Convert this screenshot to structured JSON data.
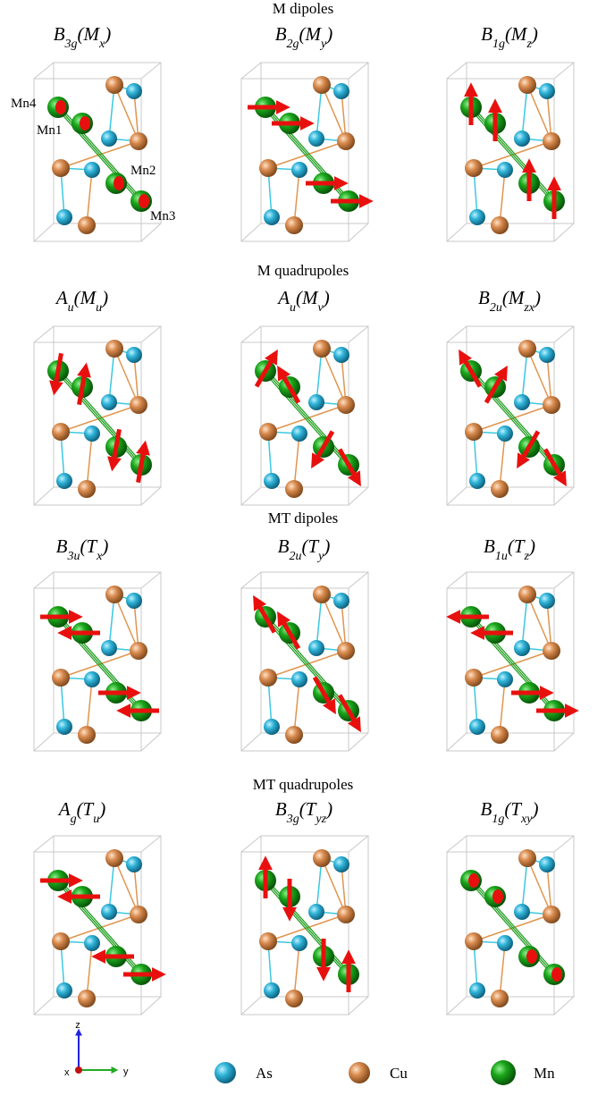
{
  "sections": [
    {
      "title": "M dipoles",
      "panels": [
        {
          "label": [
            "B",
            "3g",
            "(M",
            "x",
            ")"
          ]
        },
        {
          "label": [
            "B",
            "2g",
            "(M",
            "y",
            ")"
          ]
        },
        {
          "label": [
            "B",
            "1g",
            "(M",
            "z",
            ")"
          ]
        }
      ]
    },
    {
      "title": "M quadrupoles",
      "panels": [
        {
          "label": [
            "A",
            "u",
            "(M",
            "u",
            ")"
          ]
        },
        {
          "label": [
            "A",
            "u",
            "(M",
            "v",
            ")"
          ]
        },
        {
          "label": [
            "B",
            "2u",
            "(M",
            "zx",
            ")"
          ]
        }
      ]
    },
    {
      "title": "MT dipoles",
      "panels": [
        {
          "label": [
            "B",
            "3u",
            "(T",
            "x",
            ")"
          ]
        },
        {
          "label": [
            "B",
            "2u",
            "(T",
            "y",
            ")"
          ]
        },
        {
          "label": [
            "B",
            "1u",
            "(T",
            "z",
            ")"
          ]
        }
      ]
    },
    {
      "title": "MT quadrupoles",
      "panels": [
        {
          "label": [
            "A",
            "g",
            "(T",
            "u",
            ")"
          ]
        },
        {
          "label": [
            "B",
            "3g",
            "(T",
            "yz",
            ")"
          ]
        },
        {
          "label": [
            "B",
            "1g",
            "(T",
            "xy",
            ")"
          ]
        }
      ]
    }
  ],
  "atom_labels": [
    "Mn4",
    "Mn1",
    "Mn2",
    "Mn3"
  ],
  "legend": [
    "As",
    "Cu",
    "Mn"
  ],
  "axes": [
    "z",
    "x",
    "y"
  ]
}
